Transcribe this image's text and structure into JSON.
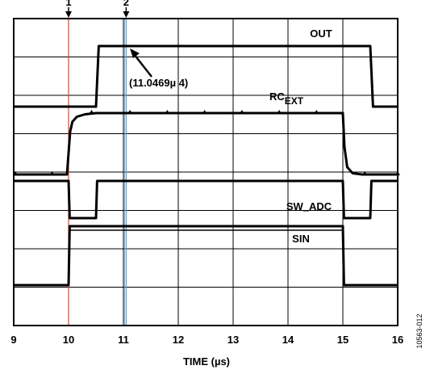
{
  "chart_data": {
    "type": "line",
    "xlabel": "TIME (µs)",
    "xlim": [
      9,
      16
    ],
    "x_ticks": [
      9,
      10,
      11,
      12,
      13,
      14,
      15,
      16
    ],
    "grid": true,
    "cursors": [
      {
        "label": "1",
        "x": 10,
        "color": "#e0442c"
      },
      {
        "label": "2",
        "x": 11.05,
        "color": "#5aa0d8"
      }
    ],
    "annotation": {
      "text": "(11.0469µ 4)",
      "x": 11.05
    },
    "series": [
      {
        "name": "OUT",
        "points": [
          [
            9,
            0
          ],
          [
            10.5,
            0
          ],
          [
            10.55,
            1
          ],
          [
            15.5,
            1
          ],
          [
            15.55,
            0
          ],
          [
            16,
            0
          ]
        ]
      },
      {
        "name": "RCEXT",
        "points": [
          [
            9,
            0
          ],
          [
            9.97,
            0
          ],
          [
            10.0,
            0.35
          ],
          [
            10.03,
            0.7
          ],
          [
            10.07,
            0.86
          ],
          [
            10.15,
            0.94
          ],
          [
            10.3,
            0.98
          ],
          [
            10.5,
            1
          ],
          [
            15.0,
            1
          ],
          [
            15.03,
            0.45
          ],
          [
            15.08,
            0.12
          ],
          [
            15.18,
            0.02
          ],
          [
            15.35,
            0
          ],
          [
            16,
            0
          ]
        ]
      },
      {
        "name": "SW_ADC",
        "points": [
          [
            9,
            1
          ],
          [
            10,
            1
          ],
          [
            10.02,
            0
          ],
          [
            10.5,
            0
          ],
          [
            10.52,
            1
          ],
          [
            15,
            1
          ],
          [
            15.02,
            0
          ],
          [
            15.5,
            0
          ],
          [
            15.52,
            1
          ],
          [
            16,
            1
          ]
        ]
      },
      {
        "name": "SIN",
        "points": [
          [
            9,
            0
          ],
          [
            10,
            0
          ],
          [
            10.02,
            1
          ],
          [
            15,
            1
          ],
          [
            15.02,
            0
          ],
          [
            16,
            0
          ]
        ]
      }
    ],
    "figure_id": "10563-012"
  },
  "labels": {
    "out": "OUT",
    "rc_main": "RC",
    "rc_sub": "EXT",
    "sw_adc": "SW_ADC",
    "sin": "SIN"
  }
}
